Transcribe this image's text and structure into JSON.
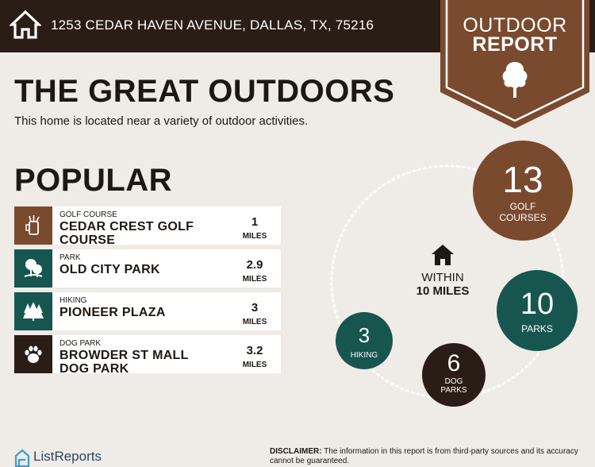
{
  "header": {
    "address": "1253 CEDAR HAVEN AVENUE, DALLAS, TX, 75216",
    "icon": "house-icon"
  },
  "badge": {
    "line1": "OUTDOOR",
    "line2": "REPORT",
    "icon": "tree-icon",
    "color": "#7a4a2e"
  },
  "title": "THE GREAT OUTDOORS",
  "subtitle": "This home is located near a variety of outdoor activities.",
  "popular": {
    "heading": "POPULAR",
    "items": [
      {
        "type": "GOLF COURSE",
        "name": "CEDAR CREST GOLF COURSE",
        "distance": "1",
        "unit": "MILES",
        "icon": "golf-bag-icon",
        "color": "#7a4a2e"
      },
      {
        "type": "PARK",
        "name": "OLD CITY PARK",
        "distance": "2.9",
        "unit": "MILES",
        "icon": "park-trees-icon",
        "color": "#16564f"
      },
      {
        "type": "HIKING",
        "name": "PIONEER PLAZA",
        "distance": "3",
        "unit": "MILES",
        "icon": "pine-trees-icon",
        "color": "#16564f"
      },
      {
        "type": "DOG PARK",
        "name": "BROWDER ST MALL DOG PARK",
        "distance": "3.2",
        "unit": "MILES",
        "icon": "paw-icon",
        "color": "#2a1d15"
      }
    ]
  },
  "summary": {
    "within_line1": "WITHIN",
    "within_line2": "10 MILES",
    "icon": "house-icon",
    "golf": {
      "count": "13",
      "label_line1": "GOLF",
      "label_line2": "COURSES"
    },
    "parks": {
      "count": "10",
      "label": "PARKS"
    },
    "hiking": {
      "count": "3",
      "label": "HIKING"
    },
    "dog": {
      "count": "6",
      "label_line1": "DOG",
      "label_line2": "PARKS"
    }
  },
  "footer": {
    "brand": "ListReports",
    "disclaimer_label": "DISCLAIMER:",
    "disclaimer_text": "The information in this report is from third-party sources and its accuracy cannot be guaranteed."
  }
}
